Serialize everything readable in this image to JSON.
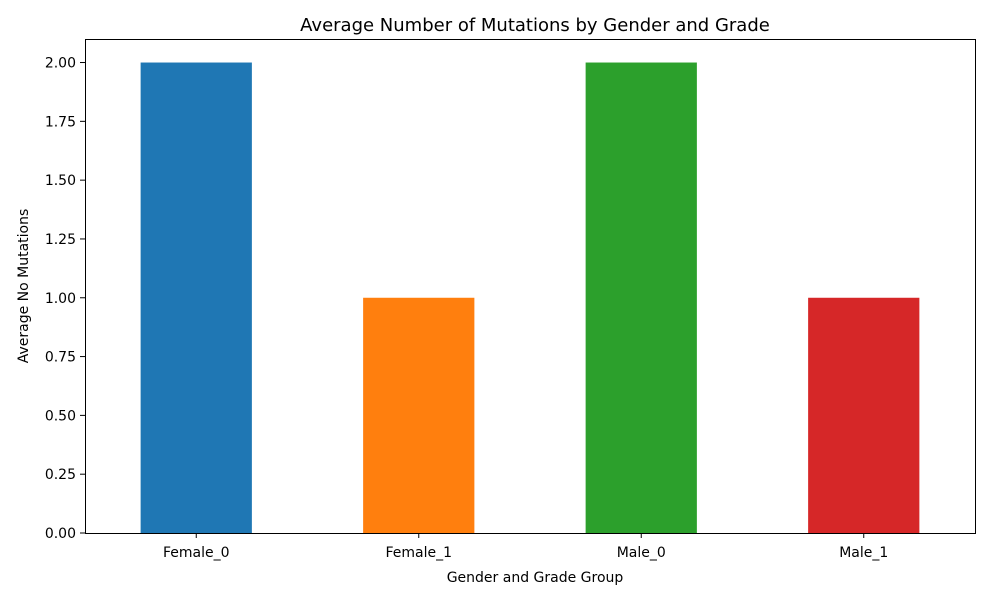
{
  "chart_data": {
    "type": "bar",
    "title": "Average Number of Mutations by Gender and Grade",
    "xlabel": "Gender and Grade Group",
    "ylabel": "Average No Mutations",
    "categories": [
      "Female_0",
      "Female_1",
      "Male_0",
      "Male_1"
    ],
    "values": [
      2.0,
      1.0,
      2.0,
      1.0
    ],
    "colors": [
      "#1f77b4",
      "#ff7f0e",
      "#2ca02c",
      "#d62728"
    ],
    "ylim": [
      0,
      2.1
    ],
    "yticks": [
      "0.00",
      "0.25",
      "0.50",
      "0.75",
      "1.00",
      "1.25",
      "1.50",
      "1.75",
      "2.00"
    ],
    "grid": false,
    "legend": "none"
  }
}
